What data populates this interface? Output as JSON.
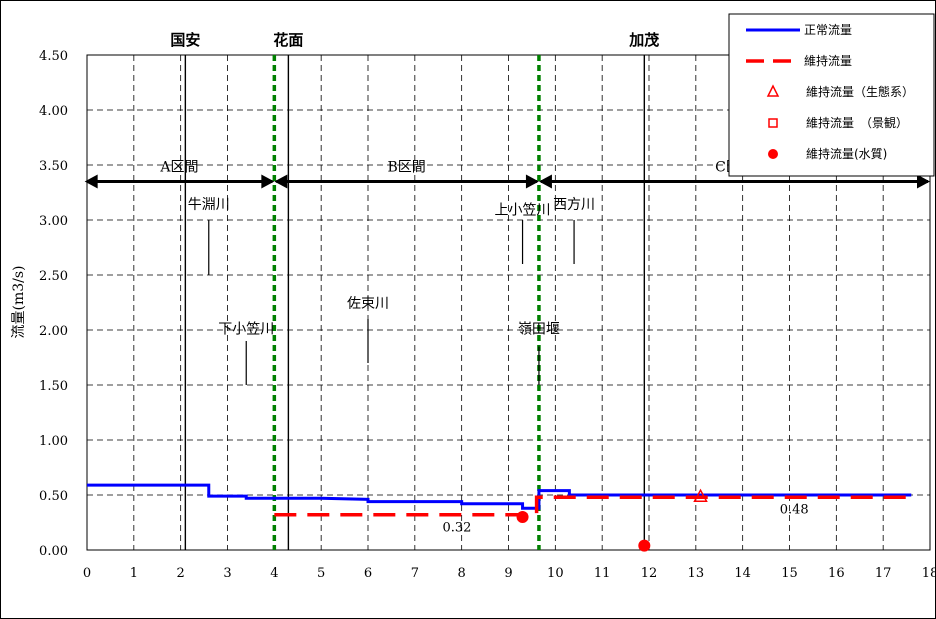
{
  "chart_data": {
    "type": "line",
    "xlim": [
      0,
      18
    ],
    "ylim": [
      0,
      4.5
    ],
    "x_ticks": [
      "0",
      "1",
      "2",
      "3",
      "4",
      "5",
      "6",
      "7",
      "8",
      "9",
      "10",
      "11",
      "12",
      "13",
      "14",
      "15",
      "16",
      "17",
      "18"
    ],
    "y_ticks": [
      "0.00",
      "0.50",
      "1.00",
      "1.50",
      "2.00",
      "2.50",
      "3.00",
      "3.50",
      "4.00",
      "4.50"
    ],
    "ylabel": "流量(m3/s)",
    "grid": true,
    "legend_position": "top-right",
    "legend": [
      {
        "label": "正常流量",
        "marker": "line-solid-blue"
      },
      {
        "label": "維持流量",
        "marker": "line-dashed-red"
      },
      {
        "label": "維持流量（生態系）",
        "marker": "triangle-red"
      },
      {
        "label": "維持流量　（景観）",
        "marker": "square-red"
      },
      {
        "label": "維持流量(水質)",
        "marker": "circle-red"
      }
    ],
    "series": [
      {
        "name": "正常流量",
        "color": "#0000ff",
        "style": "solid",
        "x": [
          0,
          2.6,
          2.6,
          3.4,
          3.4,
          5.0,
          6.0,
          6.0,
          8.0,
          8.0,
          9.3,
          9.3,
          9.65,
          9.65,
          10.3,
          10.3,
          17.6
        ],
        "y": [
          0.59,
          0.59,
          0.49,
          0.49,
          0.47,
          0.47,
          0.46,
          0.44,
          0.44,
          0.42,
          0.42,
          0.38,
          0.38,
          0.54,
          0.54,
          0.5,
          0.5
        ]
      },
      {
        "name": "維持流量",
        "color": "#ff0000",
        "style": "dashed",
        "x": [
          4.0,
          9.6,
          9.6,
          17.6
        ],
        "y": [
          0.32,
          0.32,
          0.48,
          0.48
        ]
      }
    ],
    "points": [
      {
        "kind": "triangle",
        "x": 13.1,
        "y": 0.48
      },
      {
        "kind": "circle",
        "x": 9.3,
        "y": 0.3
      },
      {
        "kind": "circle",
        "x": 11.9,
        "y": 0.04
      }
    ],
    "vertical_lines": [
      {
        "x": 2.1,
        "style": "solid-black"
      },
      {
        "x": 4.3,
        "style": "solid-black"
      },
      {
        "x": 11.9,
        "style": "solid-black"
      },
      {
        "x": 4.0,
        "style": "dotted-green"
      },
      {
        "x": 9.65,
        "style": "dotted-green"
      }
    ],
    "locations": [
      {
        "label": "国安",
        "x": 2.1
      },
      {
        "label": "花面",
        "x": 4.3
      },
      {
        "label": "加茂",
        "x": 11.9
      }
    ],
    "sections": [
      {
        "label": "A区間",
        "x_start": -0.05,
        "x_end": 4.0
      },
      {
        "label": "B区間",
        "x_start": 4.0,
        "x_end": 9.65
      },
      {
        "label": "C区間",
        "x_start": 9.65,
        "x_end": 18.0
      }
    ],
    "section_y": 3.35,
    "tributaries": [
      {
        "label": "牛淵川",
        "x": 2.6,
        "y_top": 3.0,
        "y_bottom": 2.5,
        "label_y": 3.1
      },
      {
        "label": "下小笠川",
        "x": 3.4,
        "y_top": 1.9,
        "y_bottom": 1.5,
        "label_y": 1.97
      },
      {
        "label": "佐束川",
        "x": 6.0,
        "y_top": 2.1,
        "y_bottom": 1.7,
        "label_y": 2.2
      },
      {
        "label": "上小笠川",
        "x": 9.3,
        "y_top": 3.0,
        "y_bottom": 2.6,
        "label_y": 3.05
      },
      {
        "label": "西方川",
        "x": 10.4,
        "y_top": 3.0,
        "y_bottom": 2.6,
        "label_y": 3.1
      },
      {
        "label": "嶺田堰",
        "x": 9.65,
        "y_top": 1.85,
        "y_bottom": 1.5,
        "label_y": 1.97
      }
    ],
    "data_labels": [
      {
        "text": "0.32",
        "x": 7.9,
        "y": 0.17
      },
      {
        "text": "0.48",
        "x": 15.1,
        "y": 0.33
      }
    ]
  }
}
